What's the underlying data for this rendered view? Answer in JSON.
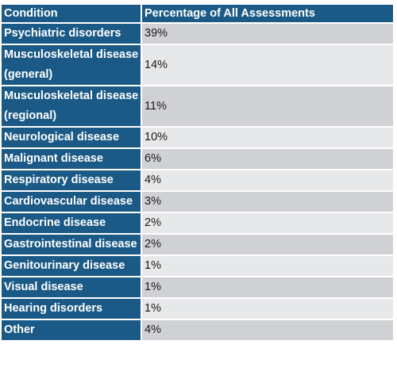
{
  "table": {
    "headers": [
      "Condition",
      "Percentage of All Assessments"
    ],
    "rows": [
      {
        "condition": "Psychiatric disorders",
        "percentage": "39%"
      },
      {
        "condition": "Musculoskeletal disease (general)",
        "percentage": "14%"
      },
      {
        "condition": "Musculoskeletal disease (regional)",
        "percentage": "11%"
      },
      {
        "condition": "Neurological disease",
        "percentage": "10%"
      },
      {
        "condition": "Malignant disease",
        "percentage": "6%"
      },
      {
        "condition": "Respiratory disease",
        "percentage": "4%"
      },
      {
        "condition": "Cardiovascular disease",
        "percentage": "3%"
      },
      {
        "condition": "Endocrine disease",
        "percentage": "2%"
      },
      {
        "condition": "Gastrointestinal disease",
        "percentage": "2%"
      },
      {
        "condition": "Genitourinary disease",
        "percentage": "1%"
      },
      {
        "condition": "Visual disease",
        "percentage": "1%"
      },
      {
        "condition": "Hearing disorders",
        "percentage": "1%"
      },
      {
        "condition": "Other",
        "percentage": "4%"
      }
    ]
  },
  "colors": {
    "header_bg": "#1b5a86",
    "row_light": "#e7e8ea",
    "row_dark": "#cfd1d4"
  }
}
